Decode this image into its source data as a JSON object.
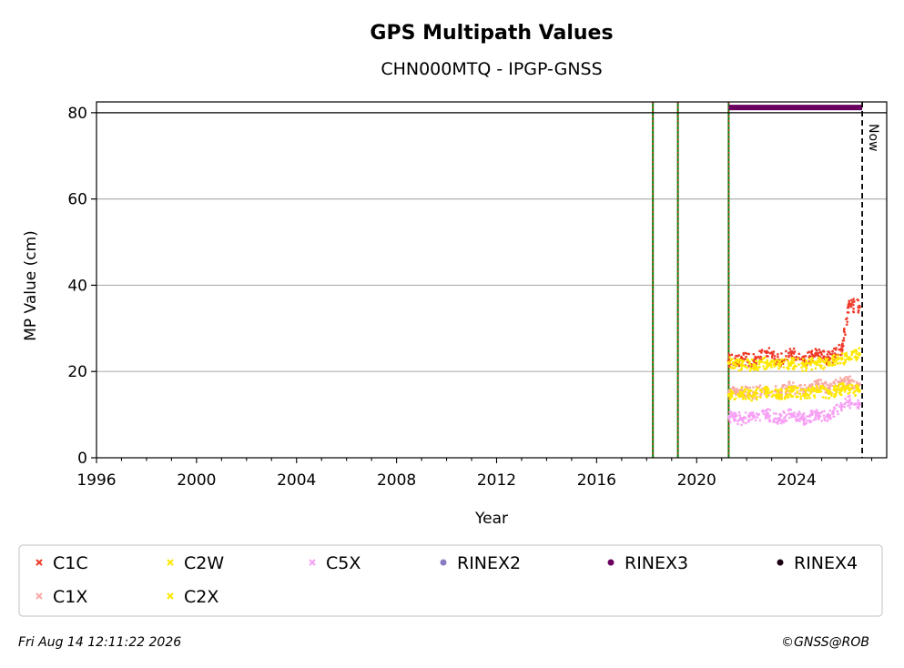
{
  "chart_data": {
    "type": "scatter",
    "title": "GPS Multipath Values",
    "subtitle": "CHN000MTQ - IPGP-GNSS",
    "xlabel": "Year",
    "ylabel": "MP Value (cm)",
    "xlim": [
      1996,
      2027.6
    ],
    "ylim": [
      0,
      82.5
    ],
    "x_ticks": [
      1996,
      2000,
      2004,
      2008,
      2012,
      2016,
      2020,
      2024
    ],
    "x_tick_labels": [
      "1996",
      "2000",
      "2004",
      "2008",
      "2012",
      "2016",
      "2020",
      "2024"
    ],
    "y_ticks": [
      0,
      20,
      40,
      60,
      80
    ],
    "y_tick_labels": [
      "0",
      "20",
      "40",
      "60",
      "80"
    ],
    "grid": "horizontal",
    "threshold_line": 80,
    "now_line": {
      "x": 2026.62,
      "label": "Now"
    },
    "event_lines": [
      2018.25,
      2019.25,
      2021.28
    ],
    "rinex3_coverage": {
      "x_start": 2021.28,
      "x_end": 2026.62,
      "y": 81.2
    },
    "series": [
      {
        "name": "C1C",
        "color": "#f03a2a",
        "marker": "x",
        "x": [
          2021.3,
          2021.8,
          2022.3,
          2022.8,
          2023.3,
          2023.8,
          2024.3,
          2024.8,
          2025.3,
          2025.8,
          2026.1,
          2026.5
        ],
        "values": [
          22.5,
          23.0,
          22.5,
          24.5,
          22.5,
          24.5,
          22.5,
          24.0,
          23.0,
          25.0,
          35.5,
          35.0
        ]
      },
      {
        "name": "C1X",
        "color": "#f8aaa5",
        "marker": "x",
        "x": [
          2021.3,
          2021.8,
          2022.3,
          2022.8,
          2023.3,
          2023.8,
          2024.3,
          2024.8,
          2025.3,
          2025.8,
          2026.1,
          2026.5
        ],
        "values": [
          15.0,
          15.5,
          15.0,
          16.0,
          15.0,
          16.5,
          15.5,
          17.0,
          16.0,
          17.5,
          17.5,
          17.0
        ]
      },
      {
        "name": "C2W",
        "color": "#ffe800",
        "marker": "x",
        "x": [
          2021.3,
          2021.8,
          2022.3,
          2022.8,
          2023.3,
          2023.8,
          2024.3,
          2024.8,
          2025.3,
          2025.8,
          2026.1,
          2026.5
        ],
        "values": [
          22.0,
          21.5,
          21.5,
          22.0,
          21.5,
          22.0,
          21.5,
          22.0,
          22.0,
          23.0,
          23.0,
          24.0
        ]
      },
      {
        "name": "C2X",
        "color": "#ffe800",
        "marker": "x",
        "x": [
          2021.3,
          2021.8,
          2022.3,
          2022.8,
          2023.3,
          2023.8,
          2024.3,
          2024.8,
          2025.3,
          2025.8,
          2026.1,
          2026.5
        ],
        "values": [
          14.5,
          15.0,
          14.5,
          15.5,
          14.5,
          15.5,
          14.5,
          15.5,
          15.0,
          16.0,
          16.0,
          15.5
        ]
      },
      {
        "name": "C5X",
        "color": "#f7a0f5",
        "marker": "x",
        "x": [
          2021.3,
          2021.8,
          2022.3,
          2022.8,
          2023.3,
          2023.8,
          2024.3,
          2024.8,
          2025.3,
          2025.8,
          2026.1,
          2026.5
        ],
        "values": [
          9.5,
          9.0,
          9.5,
          10.0,
          9.0,
          10.0,
          9.0,
          10.0,
          9.5,
          12.0,
          13.0,
          12.5
        ]
      },
      {
        "name": "RINEX2",
        "color": "#8a7cc0",
        "marker": "o",
        "x": [],
        "values": []
      },
      {
        "name": "RINEX3",
        "color": "#6a005f",
        "marker": "o",
        "x": [],
        "values": []
      },
      {
        "name": "RINEX4",
        "color": "#1a0010",
        "marker": "o",
        "x": [],
        "values": []
      }
    ],
    "legend_position": "bottom",
    "legend_rows": [
      [
        "C1C",
        "C2W",
        "C5X",
        "RINEX2",
        "RINEX3",
        "RINEX4"
      ],
      [
        "C1X",
        "C2X"
      ]
    ]
  },
  "footer": {
    "timestamp": "Fri Aug 14 12:11:22 2026",
    "credit": "©GNSS@ROB"
  }
}
